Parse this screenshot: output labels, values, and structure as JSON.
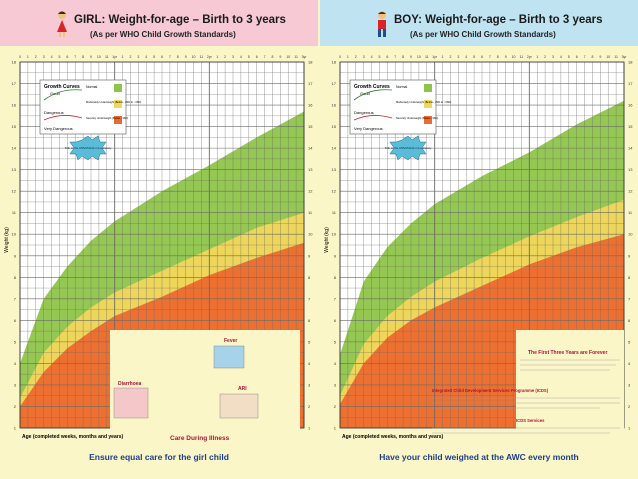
{
  "girl": {
    "title": "GIRL: Weight-for-age – Birth to 3 years",
    "subtitle": "(As per WHO Child Growth Standards)",
    "footer": "Ensure equal care for the girl child",
    "ylabel": "Weight (kg)",
    "xlabel": "Age (completed weeks, months and years)",
    "legend": {
      "title": "Growth Curves",
      "good": "Good",
      "dangerous": "Dangerous",
      "very_dangerous": "Very Dangerous",
      "normal": "Normal",
      "moderate": "Moderately Underweight (Below - 2SD to - 3SD)",
      "severe": "Severely Underweight (Below - 3SD)"
    },
    "callout": "Talk to the ANM/ASHA immediately",
    "care_title": "Care During Illness",
    "fever_label": "Fever",
    "diarrhoea_label": "Diarrhoea",
    "ari_label": "ARI"
  },
  "boy": {
    "title": "BOY: Weight-for-age – Birth to 3 years",
    "subtitle": "(As per WHO Child Growth Standards)",
    "footer": "Have your child weighed at the AWC every month",
    "ylabel": "Weight (kg)",
    "xlabel": "Age (completed weeks, months and years)",
    "legend": {
      "title": "Growth Curves",
      "good": "Good",
      "dangerous": "Dangerous",
      "very_dangerous": "Very Dangerous",
      "normal": "Normal",
      "moderate": "Moderately Underweight (Below - 2SD to - 3SD)",
      "severe": "Severely Underweight (Below - 3SD)"
    },
    "callout": "Talk to the ANM/ASHA immediately",
    "info_title": "The First Three Years are Forever",
    "icds_title": "Integrated Child Development Services Programme (ICDS)",
    "icds_services": "ICDS Services"
  },
  "colors": {
    "girl_header": "#f6c9d4",
    "boy_header": "#bfe3f0",
    "normal": "#8fc44a",
    "moderate": "#f2d75c",
    "severe": "#ec6a2f",
    "grid": "#6a6a6a",
    "poster_bg": "#fbf6c8"
  },
  "chart_data": [
    {
      "type": "area",
      "title": "GIRL: Weight-for-age – Birth to 3 years",
      "xlabel": "Age (completed weeks, months and years)",
      "ylabel": "Weight (kg)",
      "x_unit": "months",
      "xlim": [
        0,
        36
      ],
      "ylim": [
        1,
        18
      ],
      "x": [
        0,
        3,
        6,
        9,
        12,
        18,
        24,
        30,
        36
      ],
      "series": [
        {
          "name": "Severely Underweight (Below - 3SD)",
          "values": [
            2.0,
            3.6,
            4.7,
            5.5,
            6.2,
            7.1,
            8.1,
            8.9,
            9.6
          ]
        },
        {
          "name": "Moderately Underweight (Below - 2SD to - 3SD)",
          "values": [
            2.4,
            4.5,
            5.7,
            6.6,
            7.3,
            8.3,
            9.3,
            10.3,
            11.0
          ]
        },
        {
          "name": "Normal",
          "values": [
            4.0,
            7.0,
            8.5,
            9.7,
            10.6,
            12.0,
            13.2,
            14.5,
            15.7
          ]
        }
      ],
      "grid": true
    },
    {
      "type": "area",
      "title": "BOY: Weight-for-age – Birth to 3 years",
      "xlabel": "Age (completed weeks, months and years)",
      "ylabel": "Weight (kg)",
      "x_unit": "months",
      "xlim": [
        0,
        36
      ],
      "ylim": [
        1,
        18
      ],
      "x": [
        0,
        3,
        6,
        9,
        12,
        18,
        24,
        30,
        36
      ],
      "series": [
        {
          "name": "Severely Underweight (Below - 3SD)",
          "values": [
            2.1,
            4.0,
            5.2,
            6.0,
            6.6,
            7.6,
            8.6,
            9.4,
            10.0
          ]
        },
        {
          "name": "Moderately Underweight (Below - 2SD to - 3SD)",
          "values": [
            2.5,
            4.9,
            6.2,
            7.1,
            7.8,
            8.9,
            9.9,
            10.8,
            11.6
          ]
        },
        {
          "name": "Normal",
          "values": [
            4.4,
            7.8,
            9.4,
            10.5,
            11.4,
            12.7,
            13.8,
            15.1,
            16.2
          ]
        }
      ],
      "grid": true
    }
  ]
}
